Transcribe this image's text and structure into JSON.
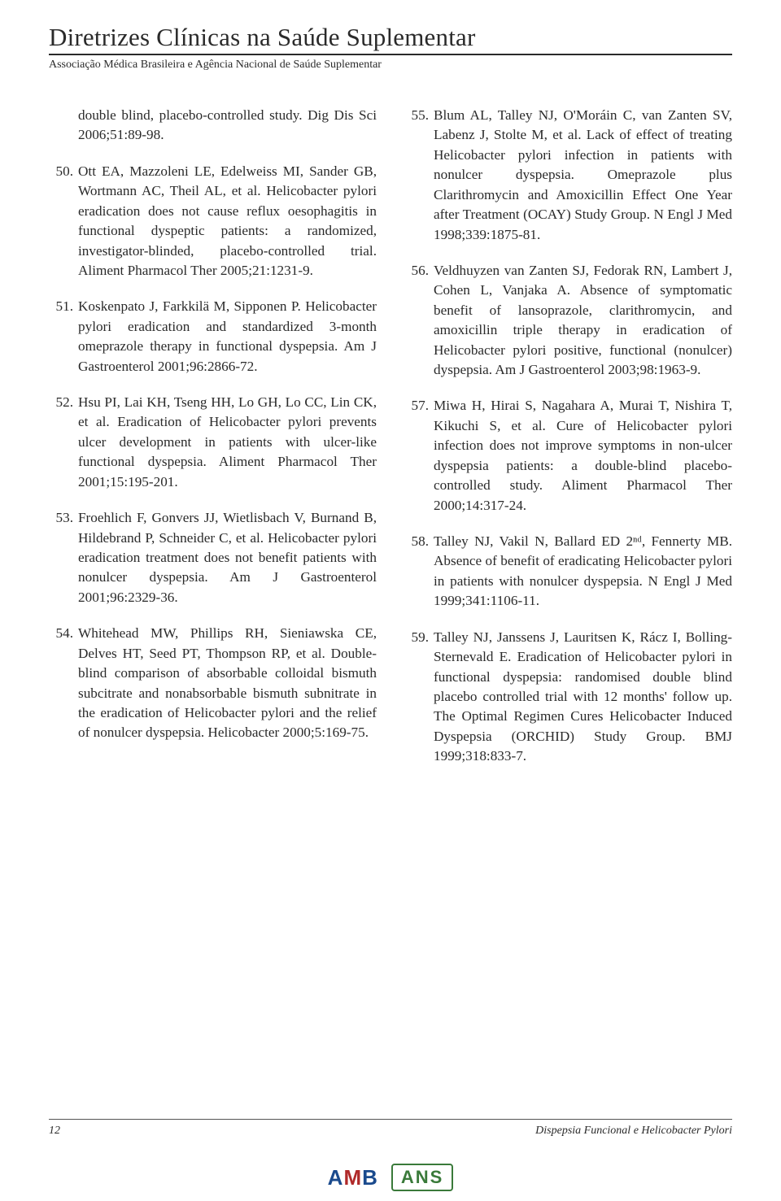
{
  "header": {
    "title": "Diretrizes Clínicas na Saúde Suplementar",
    "subtitle": "Associação Médica Brasileira e Agência Nacional de Saúde Suplementar"
  },
  "refs_left": [
    {
      "num": "",
      "text": "double blind, placebo-controlled study. Dig Dis Sci 2006;51:89-98.",
      "cont": true
    },
    {
      "num": "50.",
      "text": "Ott EA, Mazzoleni LE, Edelweiss MI, Sander GB, Wortmann AC, Theil AL, et al. Helicobacter pylori eradication does not cause reflux oesophagitis in functional dyspeptic patients: a randomized, investigator-blinded, placebo-controlled trial. Aliment Pharmacol Ther 2005;21:1231-9."
    },
    {
      "num": "51.",
      "text": "Koskenpato J, Farkkilä M, Sipponen P. Helicobacter pylori eradication and standardized 3-month omeprazole therapy in functional dyspepsia. Am J Gastroenterol 2001;96:2866-72."
    },
    {
      "num": "52.",
      "text": "Hsu PI, Lai KH, Tseng HH, Lo GH, Lo CC, Lin CK, et al. Eradication of Helicobacter pylori prevents ulcer development in patients with ulcer-like functional dyspepsia. Aliment Pharmacol Ther 2001;15:195-201."
    },
    {
      "num": "53.",
      "text": "Froehlich F, Gonvers JJ, Wietlisbach V, Burnand B, Hildebrand P, Schneider C, et al. Helicobacter pylori eradication treatment does not benefit patients with nonulcer dyspepsia. Am J Gastroenterol 2001;96:2329-36."
    },
    {
      "num": "54.",
      "text": "Whitehead MW, Phillips RH, Sieniawska CE, Delves HT, Seed PT, Thompson RP, et al. Double-blind comparison of absorbable colloidal bismuth subcitrate and nonabsorbable bismuth subnitrate in the eradication of Helicobacter pylori and the relief of nonulcer dyspepsia. Helicobacter 2000;5:169-75."
    }
  ],
  "refs_right": [
    {
      "num": "55.",
      "text": "Blum AL, Talley NJ, O'Moráin C, van Zanten SV, Labenz J, Stolte M, et al. Lack of effect of treating Helicobacter pylori infection in patients with nonulcer dyspepsia. Omeprazole plus Clarithromycin and Amoxicillin Effect One Year after Treatment (OCAY) Study Group. N Engl J Med 1998;339:1875-81."
    },
    {
      "num": "56.",
      "text": "Veldhuyzen van Zanten SJ, Fedorak RN, Lambert J, Cohen L, Vanjaka A. Absence of symptomatic benefit of lansoprazole, clarithromycin, and amoxicillin triple therapy in eradication of Helicobacter pylori positive, functional (nonulcer) dyspepsia. Am J Gastroenterol 2003;98:1963-9."
    },
    {
      "num": "57.",
      "text": "Miwa H, Hirai S, Nagahara A, Murai T, Nishira T, Kikuchi S, et al. Cure of Helicobacter pylori infection does not improve symptoms in non-ulcer dyspepsia patients: a double-blind placebo-controlled study. Aliment Pharmacol Ther 2000;14:317-24."
    },
    {
      "num": "58.",
      "text": "Talley NJ, Vakil N, Ballard ED 2ⁿᵈ, Fennerty MB. Absence of benefit of eradicating Helicobacter pylori in patients with nonulcer dyspepsia. N Engl J Med 1999;341:1106-11."
    },
    {
      "num": "59.",
      "text": "Talley NJ, Janssens J, Lauritsen K, Rácz I, Bolling-Sternevald E. Eradication of Helicobacter pylori in functional dyspepsia: randomised double blind placebo controlled trial with 12 months' follow up. The Optimal Regimen Cures Helicobacter Induced Dyspepsia (ORCHID) Study Group. BMJ 1999;318:833-7."
    }
  ],
  "footer": {
    "page_num": "12",
    "doc_title": "Dispepsia Funcional e Helicobacter Pylori"
  },
  "logos": {
    "amb": "AMB",
    "ans": "ANS"
  }
}
